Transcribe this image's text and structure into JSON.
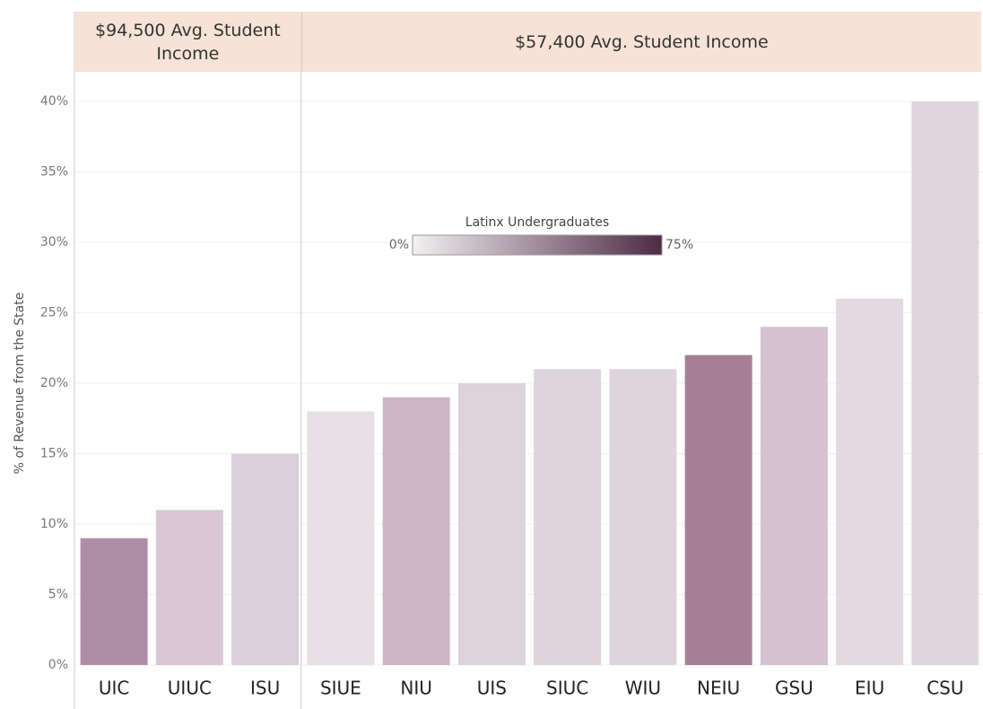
{
  "chart_data": {
    "type": "bar",
    "y_label": "% of Revenue from the State",
    "groups": [
      {
        "label": "$94,500 Avg. Student Income",
        "size": 3
      },
      {
        "label": "$57,400 Avg. Student Income",
        "size": 9
      }
    ],
    "categories": [
      "UIC",
      "UIUC",
      "ISU",
      "SIUE",
      "NIU",
      "UIS",
      "SIUC",
      "WIU",
      "NEIU",
      "GSU",
      "EIU",
      "CSU"
    ],
    "values": [
      9,
      11,
      15,
      18,
      19,
      20,
      21,
      21,
      22,
      24,
      26,
      40
    ],
    "colors": [
      "#ae8ea6",
      "#d9c8d3",
      "#dccfd9",
      "#e8e0e5",
      "#cdb6c5",
      "#ded2db",
      "#dfd4dc",
      "#dfd4dc",
      "#a57f98",
      "#d5c2cf",
      "#e4d9e0",
      "#e1d6de"
    ],
    "ylim": [
      0,
      40
    ],
    "yticks": [
      {
        "value": 0,
        "label": "0%"
      },
      {
        "value": 5,
        "label": "5%"
      },
      {
        "value": 10,
        "label": "10%"
      },
      {
        "value": 15,
        "label": "15%"
      },
      {
        "value": 20,
        "label": "20%"
      },
      {
        "value": 25,
        "label": "25%"
      },
      {
        "value": 30,
        "label": "30%"
      },
      {
        "value": 35,
        "label": "35%"
      },
      {
        "value": 40,
        "label": "40%"
      }
    ],
    "grid": true,
    "legend": {
      "title": "Latinx Undergraduates",
      "min": {
        "value": 0,
        "label": "0%"
      },
      "max": {
        "value": 75,
        "label": "75%"
      },
      "colors": [
        "#f2f0f1",
        "#4e2a45"
      ]
    }
  }
}
